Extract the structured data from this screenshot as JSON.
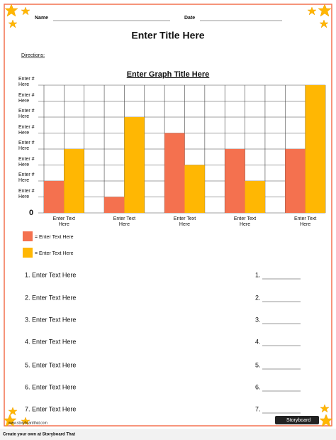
{
  "header": {
    "name_label": "Name",
    "date_label": "Date",
    "title": "Enter Title Here",
    "directions": "Directions:"
  },
  "chart_data": {
    "type": "bar",
    "title": "Enter Graph Title Here",
    "categories": [
      "Enter Text Here",
      "Enter Text Here",
      "Enter Text Here",
      "Enter Text Here",
      "Enter Text Here"
    ],
    "series": [
      {
        "name": "= Enter Text Here",
        "color": "#f4714f",
        "values": [
          2,
          1,
          5,
          4,
          4
        ]
      },
      {
        "name": "= Enter Text Here",
        "color": "#ffb703",
        "values": [
          4,
          6,
          3,
          2,
          8
        ]
      }
    ],
    "ylim": [
      0,
      8
    ],
    "yticks": [
      0,
      {
        "value": 1,
        "label": "Enter # Here"
      },
      {
        "value": 2,
        "label": "Enter # Here"
      },
      {
        "value": 3,
        "label": "Enter # Here"
      },
      {
        "value": 4,
        "label": "Enter # Here"
      },
      {
        "value": 5,
        "label": "Enter # Here"
      },
      {
        "value": 6,
        "label": "Enter # Here"
      },
      {
        "value": 7,
        "label": "Enter # Here"
      },
      {
        "value": 8,
        "label": "Enter # Here"
      }
    ],
    "grid": true
  },
  "questions": [
    "1. Enter Text Here",
    "2. Enter Text Here",
    "3. Enter Text Here",
    "4. Enter Text Here",
    "5. Enter Text Here",
    "6. Enter Text Here",
    "7. Enter Text Here"
  ],
  "answers": [
    "1.",
    "2.",
    "3.",
    "4.",
    "5.",
    "6.",
    "7."
  ],
  "footer": {
    "watermark": "www.storyboardthat.com",
    "logo": "Storyboard",
    "credit": "Create your own at Storyboard That"
  }
}
